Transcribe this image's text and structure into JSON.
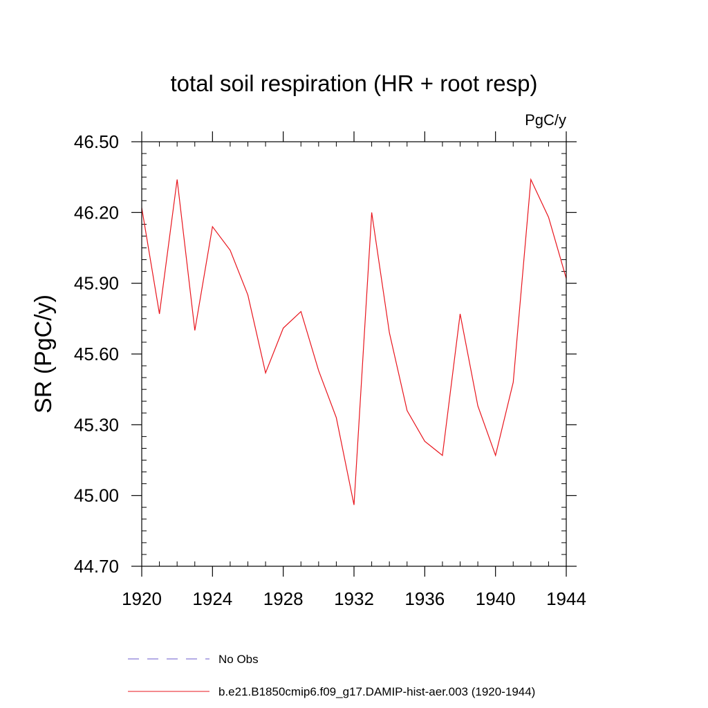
{
  "chart_data": {
    "type": "line",
    "title": "total soil respiration (HR + root resp)",
    "units": "PgC/y",
    "ylabel": "SR  (PgC/y)",
    "xlabel": "",
    "xlim": [
      1920,
      1944
    ],
    "ylim": [
      44.7,
      46.5
    ],
    "x_ticks": [
      1920,
      1924,
      1928,
      1932,
      1936,
      1940,
      1944
    ],
    "x_tick_labels": [
      "1920",
      "1924",
      "1928",
      "1932",
      "1936",
      "1940",
      "1944"
    ],
    "y_ticks": [
      44.7,
      45.0,
      45.3,
      45.6,
      45.9,
      46.2,
      46.5
    ],
    "y_tick_labels": [
      "44.70",
      "45.00",
      "45.30",
      "45.60",
      "45.90",
      "46.20",
      "46.50"
    ],
    "grid": false,
    "legend_position": "bottom",
    "x": [
      1920,
      1921,
      1922,
      1923,
      1924,
      1925,
      1926,
      1927,
      1928,
      1929,
      1930,
      1931,
      1932,
      1933,
      1934,
      1935,
      1936,
      1937,
      1938,
      1939,
      1940,
      1941,
      1942,
      1943,
      1944
    ],
    "series": [
      {
        "name": "b.e21.B1850cmip6.f09_g17.DAMIP-hist-aer.003 (1920-1944)",
        "color": "#e8141c",
        "style": "solid",
        "values": [
          46.22,
          45.77,
          46.34,
          45.7,
          46.14,
          46.04,
          45.85,
          45.52,
          45.71,
          45.78,
          45.53,
          45.33,
          44.96,
          46.2,
          45.69,
          45.36,
          45.23,
          45.17,
          45.77,
          45.38,
          45.17,
          45.48,
          46.34,
          46.18,
          45.92
        ]
      }
    ],
    "legend": [
      {
        "name": "No Obs",
        "color": "#6a5acd",
        "style": "dashed"
      },
      {
        "name": "b.e21.B1850cmip6.f09_g17.DAMIP-hist-aer.003 (1920-1944)",
        "color": "#e8141c",
        "style": "solid"
      }
    ]
  }
}
